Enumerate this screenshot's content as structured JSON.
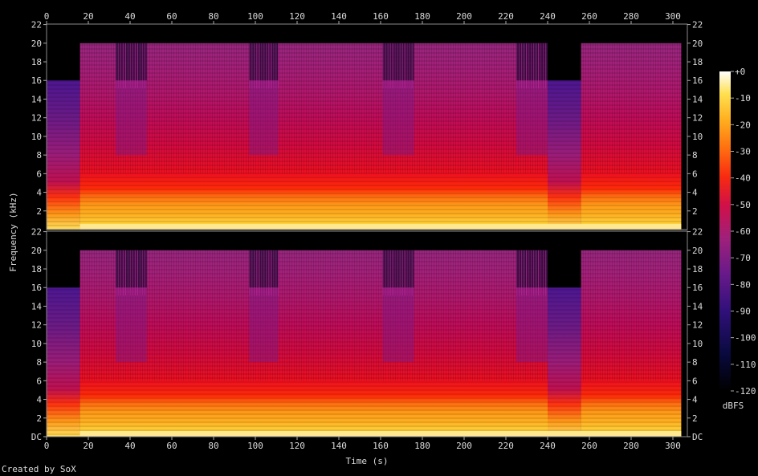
{
  "chart_data": {
    "type": "heatmap",
    "xlabel": "Time (s)",
    "ylabel": "Frequency (kHz)",
    "x_ticks": [
      "0",
      "20",
      "40",
      "60",
      "80",
      "100",
      "120",
      "140",
      "160",
      "180",
      "200",
      "220",
      "240",
      "260",
      "280",
      "300"
    ],
    "xlim": [
      0,
      306
    ],
    "channels": [
      {
        "y_ticks": [
          "2",
          "4",
          "6",
          "8",
          "10",
          "12",
          "14",
          "16",
          "18",
          "20",
          "22"
        ]
      },
      {
        "y_ticks": [
          "DC",
          "2",
          "4",
          "6",
          "8",
          "10",
          "12",
          "14",
          "16",
          "18",
          "20",
          "22"
        ]
      }
    ],
    "ylim_khz": [
      0,
      22.05
    ],
    "colorbar": {
      "label": "dBFS",
      "ticks": [
        "+0",
        "-10",
        "-20",
        "-30",
        "-40",
        "-50",
        "-60",
        "-70",
        "-80",
        "-90",
        "-100",
        "-110",
        "-120"
      ],
      "range": [
        -120,
        0
      ]
    },
    "bandwidth_segments": [
      {
        "start": 0,
        "end": 16,
        "cutoff_khz": 16
      },
      {
        "start": 16,
        "end": 240,
        "cutoff_khz": 20
      },
      {
        "start": 240,
        "end": 256,
        "cutoff_khz": 16
      },
      {
        "start": 256,
        "end": 304,
        "cutoff_khz": 20
      }
    ],
    "gap_regions": [
      [
        33,
        48
      ],
      [
        97,
        111
      ],
      [
        161,
        176
      ],
      [
        225,
        240
      ]
    ],
    "grid": false
  },
  "footer": {
    "credit": "Created by SoX"
  }
}
